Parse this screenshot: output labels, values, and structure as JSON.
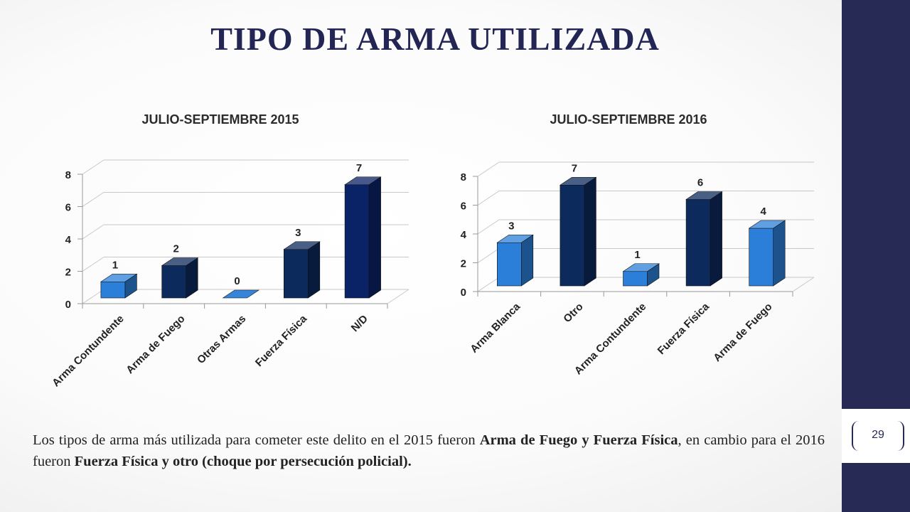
{
  "slide": {
    "title": "TIPO DE ARMA UTILIZADA",
    "page_number": "29",
    "summary": {
      "intro": "Los tipos de arma más utilizada para cometer este delito en el 2015 fueron ",
      "bold_2015": "Arma de Fuego y Fuerza Física",
      "middle": ", en cambio para el 2016 fueron ",
      "bold_2016": "Fuerza Física y otro (choque por persecución policial)."
    }
  },
  "colors": {
    "sidebar": "#262a55",
    "title": "#232654",
    "light_bar": "#2b7fd8",
    "dark_bar": "#0c2a5c",
    "darkest_bar": "#0a2266"
  },
  "chart_data": [
    {
      "type": "bar",
      "title": "JULIO-SEPTIEMBRE 2015",
      "categories": [
        "Arma Contundente",
        "Arma de Fuego",
        "Otras Armas",
        "Fuerza Física",
        "N/D"
      ],
      "values": [
        1,
        2,
        0,
        3,
        7
      ],
      "data_labels": [
        "1",
        "2",
        "0",
        "3",
        "7"
      ],
      "bar_colors": [
        "#2b7fd8",
        "#0c2a5c",
        "#2b7fd8",
        "#0c2a5c",
        "#0a2266"
      ],
      "ylim": [
        0,
        8
      ],
      "yticks": [
        "0",
        "2",
        "4",
        "6",
        "8"
      ],
      "grid": true,
      "style": "3d-column"
    },
    {
      "type": "bar",
      "title": "JULIO-SEPTIEMBRE 2016",
      "categories": [
        "Arma Blanca",
        "Otro",
        "Arma Contundente",
        "Fuerza Física",
        "Arma de Fuego"
      ],
      "values": [
        3,
        7,
        1,
        6,
        4
      ],
      "data_labels": [
        "3",
        "7",
        "1",
        "6",
        "4"
      ],
      "bar_colors": [
        "#2b7fd8",
        "#0c2a5c",
        "#2b7fd8",
        "#0c2a5c",
        "#2b7fd8"
      ],
      "ylim": [
        0,
        8
      ],
      "yticks": [
        "0",
        "2",
        "4",
        "6",
        "8"
      ],
      "grid": true,
      "style": "3d-column"
    }
  ]
}
